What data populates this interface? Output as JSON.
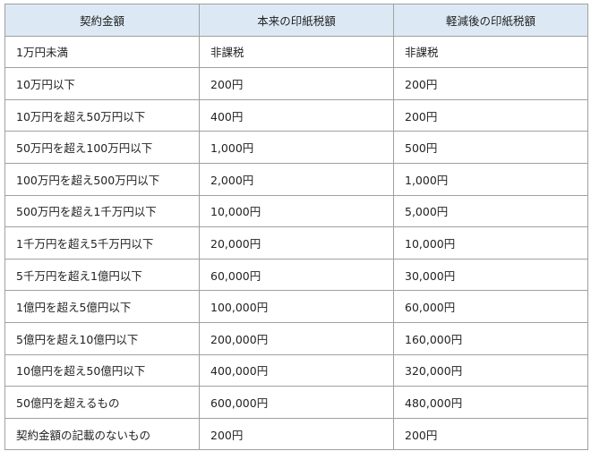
{
  "table": {
    "header": [
      "契約金額",
      "本来の印紙税額",
      "軽減後の印紙税額"
    ],
    "rows": [
      [
        "1万円未満",
        "非課税",
        "非課税"
      ],
      [
        "10万円以下",
        "200円",
        "200円"
      ],
      [
        "10万円を超え50万円以下",
        "400円",
        "200円"
      ],
      [
        "50万円を超え100万円以下",
        "1,000円",
        "500円"
      ],
      [
        "100万円を超え500万円以下",
        "2,000円",
        "1,000円"
      ],
      [
        "500万円を超え1千万円以下",
        "10,000円",
        "5,000円"
      ],
      [
        "1千万円を超え5千万円以下",
        "20,000円",
        "10,000円"
      ],
      [
        "5千万円を超え1億円以下",
        "60,000円",
        "30,000円"
      ],
      [
        "1億円を超え5億円以下",
        "100,000円",
        "60,000円"
      ],
      [
        "5億円を超え10億円以下",
        "200,000円",
        "160,000円"
      ],
      [
        "10億円を超え50億円以下",
        "400,000円",
        "320,000円"
      ],
      [
        "50億円を超えるもの",
        "600,000円",
        "480,000円"
      ],
      [
        "契約金額の記載のないもの",
        "200円",
        "200円"
      ]
    ]
  }
}
